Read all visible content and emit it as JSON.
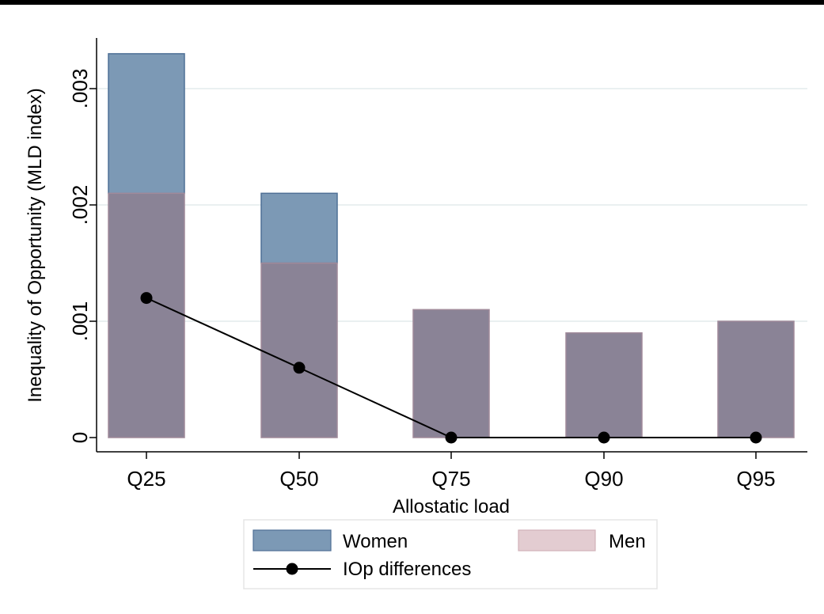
{
  "chart_data": {
    "type": "bar",
    "categories": [
      "Q25",
      "Q50",
      "Q75",
      "Q90",
      "Q95"
    ],
    "series": [
      {
        "name": "Women",
        "type": "bar",
        "values": [
          0.0033,
          0.0021,
          0.0011,
          0.0009,
          0.001
        ],
        "color": "#7c99b5"
      },
      {
        "name": "Men",
        "type": "bar",
        "values": [
          0.0021,
          0.0015,
          0.0011,
          0.0009,
          0.001
        ],
        "color": "#e3ccd1"
      },
      {
        "name": "IOp differences",
        "type": "line",
        "values": [
          0.0012,
          0.0006,
          0,
          0,
          0
        ],
        "color": "#000000"
      }
    ],
    "overlap_color": "#8a8396",
    "xlabel": "Allostatic load",
    "ylabel": "Inequality of Opportunity (MLD index)",
    "yticks": [
      0,
      0.001,
      0.002,
      0.003
    ],
    "ytick_labels": [
      "0",
      ".001",
      ".002",
      ".003"
    ],
    "ylim": [
      0,
      0.0034
    ],
    "grid": true,
    "legend_placement": "bottom"
  }
}
